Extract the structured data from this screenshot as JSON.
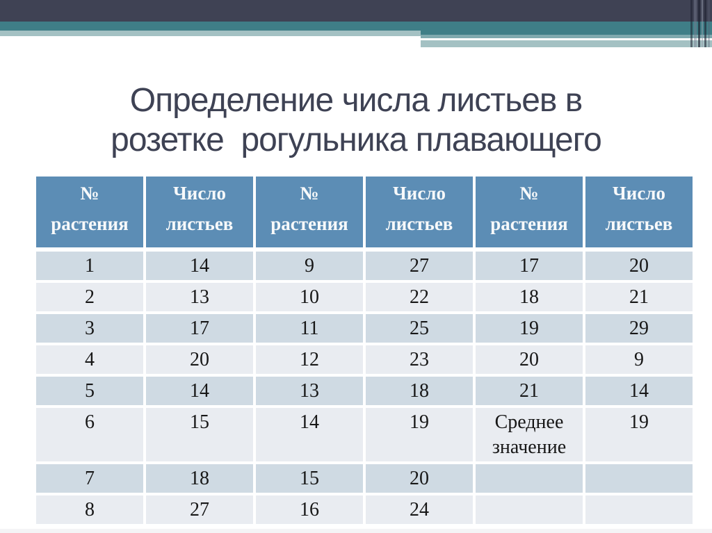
{
  "slide": {
    "title": {
      "line1": "Определение числа листьев в",
      "line2": "розетке  рогульника плавающего"
    }
  },
  "table": {
    "headers": [
      "№\nрастения",
      "Число\nлистьев",
      "№\nрастения",
      "Число\nлистьев",
      "№\nрастения",
      "Число\nлистьев"
    ],
    "rows": [
      [
        "1",
        "14",
        "9",
        "27",
        "17",
        "20"
      ],
      [
        "2",
        "13",
        "10",
        "22",
        "18",
        "21"
      ],
      [
        "3",
        "17",
        "11",
        "25",
        "19",
        "29"
      ],
      [
        "4",
        "20",
        "12",
        "23",
        "20",
        "9"
      ],
      [
        "5",
        "14",
        "13",
        "18",
        "21",
        "14"
      ],
      [
        "6",
        "15",
        "14",
        "19",
        "Среднее значение",
        "19"
      ],
      [
        "7",
        "18",
        "15",
        "20",
        "",
        ""
      ],
      [
        "8",
        "27",
        "16",
        "24",
        "",
        ""
      ]
    ]
  },
  "theme": {
    "dark_bar": "#3F4254",
    "teal": "#3F7E87",
    "teal_light": "#7FA9AE",
    "sage": "#A4C1C3",
    "header_bg": "#5C8DB5",
    "header_text": "#F7F9FA",
    "row_dark": "#CFDAE3",
    "row_light": "#E9ECF1",
    "cell_text": "#171717",
    "title_text": "#3E4254"
  }
}
